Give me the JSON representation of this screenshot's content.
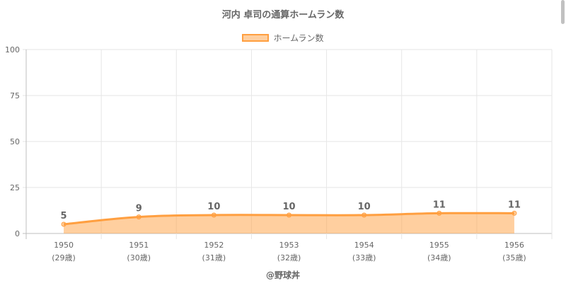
{
  "page": {
    "title": "河内 卓司の通算ホームラン数",
    "credit": "@野球丼"
  },
  "colors": {
    "line": "#ff9f40",
    "fill": "rgba(255,159,64,0.5)",
    "grid": "#e6e6e6",
    "axis": "#bfbfbf",
    "text": "#666666"
  },
  "chart_data": {
    "type": "area",
    "title": "河内 卓司の通算ホームラン数",
    "categories": [
      "1950",
      "1951",
      "1952",
      "1953",
      "1954",
      "1955",
      "1956"
    ],
    "sublabels": [
      "(29歳)",
      "(30歳)",
      "(31歳)",
      "(32歳)",
      "(33歳)",
      "(34歳)",
      "(35歳)"
    ],
    "series": [
      {
        "name": "ホームラン数",
        "values": [
          5,
          9,
          10,
          10,
          10,
          11,
          11
        ]
      }
    ],
    "ylim": [
      0,
      100
    ],
    "yticks": [
      0,
      25,
      50,
      75,
      100
    ],
    "grid": true,
    "legend": "top-center",
    "data_labels": true
  }
}
